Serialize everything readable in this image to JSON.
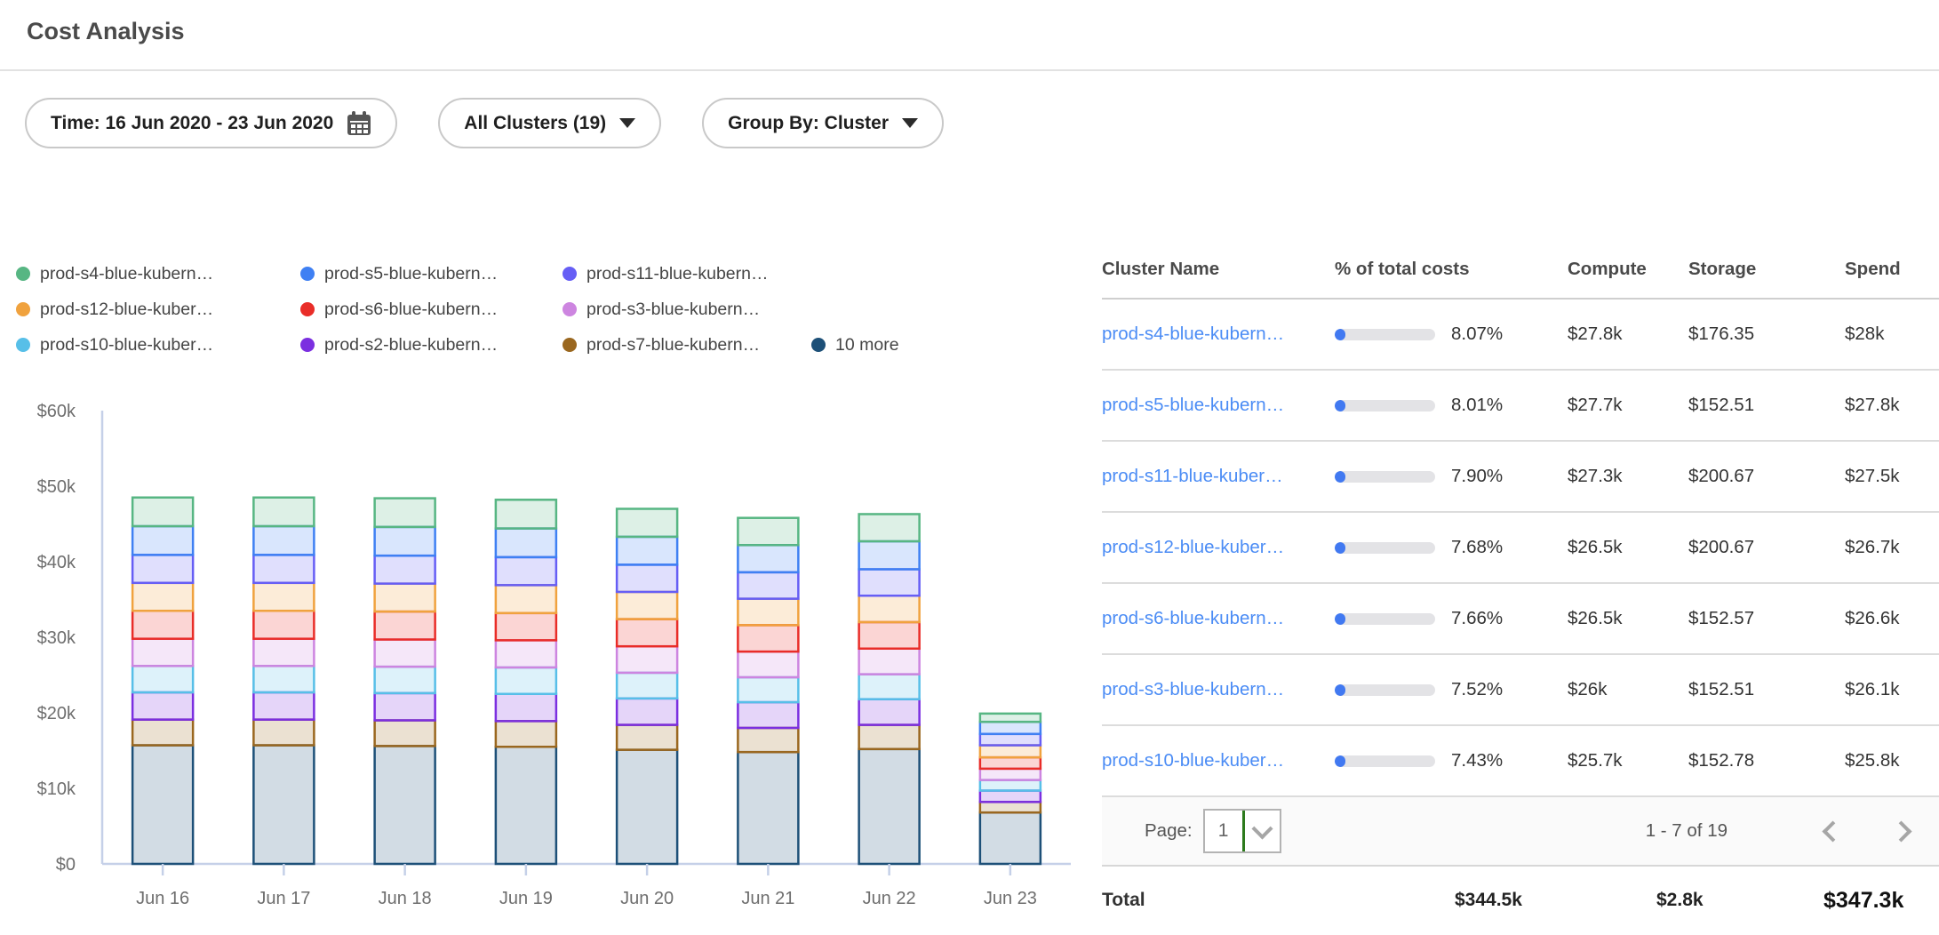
{
  "header": {
    "title": "Cost Analysis"
  },
  "filters": {
    "time_label": "Time: 16 Jun 2020 - 23 Jun 2020",
    "clusters_label": "All Clusters (19)",
    "group_by_label": "Group By: Cluster"
  },
  "icons": {
    "calendar": "calendar-icon",
    "caret_down": "caret-down-icon",
    "chevron_left": "chevron-left-icon",
    "chevron_right": "chevron-right-icon",
    "select_chevron": "chevron-down-icon"
  },
  "colors": {
    "link_blue": "#4b8cf5",
    "progress_track": "#e3e3e6",
    "progress_fill": "#4179f1",
    "axis_line": "#c5d0e8",
    "axis_text": "#6e6e6e",
    "select_divider_green": "#2d7a1d"
  },
  "chart_data": {
    "type": "bar",
    "stacked": true,
    "title": "",
    "xlabel": "",
    "ylabel": "",
    "ylim": [
      0,
      60000
    ],
    "ytick_labels": [
      "$0",
      "$10k",
      "$20k",
      "$30k",
      "$40k",
      "$50k",
      "$60k"
    ],
    "x": [
      "Jun 16",
      "Jun 17",
      "Jun 18",
      "Jun 19",
      "Jun 20",
      "Jun 21",
      "Jun 22",
      "Jun 23"
    ],
    "unit": "USD thousands per day",
    "legend_position": "top-left",
    "grid": false,
    "stack_order_bottom_to_top": [
      "10 more",
      "prod-s7-blue-kubern…",
      "prod-s2-blue-kubern…",
      "prod-s10-blue-kuber…",
      "prod-s3-blue-kubern…",
      "prod-s6-blue-kubern…",
      "prod-s12-blue-kuber…",
      "prod-s11-blue-kubern…",
      "prod-s5-blue-kubern…",
      "prod-s4-blue-kubern…"
    ],
    "series": [
      {
        "name": "prod-s4-blue-kubern…",
        "color": "#57b683",
        "values": [
          3.8,
          3.8,
          3.8,
          3.8,
          3.7,
          3.6,
          3.6,
          1.1
        ]
      },
      {
        "name": "prod-s5-blue-kubern…",
        "color": "#3f80f3",
        "values": [
          3.8,
          3.8,
          3.8,
          3.8,
          3.7,
          3.6,
          3.7,
          1.6
        ]
      },
      {
        "name": "prod-s11-blue-kubern…",
        "color": "#665ef5",
        "values": [
          3.7,
          3.7,
          3.7,
          3.7,
          3.6,
          3.5,
          3.5,
          1.5
        ]
      },
      {
        "name": "prod-s12-blue-kuber…",
        "color": "#f0a23e",
        "values": [
          3.7,
          3.7,
          3.7,
          3.7,
          3.6,
          3.5,
          3.5,
          1.6
        ]
      },
      {
        "name": "prod-s6-blue-kubern…",
        "color": "#e92d28",
        "values": [
          3.7,
          3.7,
          3.7,
          3.6,
          3.6,
          3.5,
          3.5,
          1.5
        ]
      },
      {
        "name": "prod-s3-blue-kubern…",
        "color": "#cd85e0",
        "values": [
          3.6,
          3.6,
          3.6,
          3.6,
          3.5,
          3.4,
          3.4,
          1.5
        ]
      },
      {
        "name": "prod-s10-blue-kuber…",
        "color": "#57bfe8",
        "values": [
          3.5,
          3.5,
          3.5,
          3.5,
          3.4,
          3.3,
          3.3,
          1.4
        ]
      },
      {
        "name": "prod-s2-blue-kubern…",
        "color": "#7b2fe0",
        "values": [
          3.6,
          3.6,
          3.6,
          3.6,
          3.5,
          3.4,
          3.4,
          1.5
        ]
      },
      {
        "name": "prod-s7-blue-kubern…",
        "color": "#9a671f",
        "values": [
          3.4,
          3.4,
          3.4,
          3.4,
          3.3,
          3.2,
          3.2,
          1.4
        ]
      },
      {
        "name": "10 more",
        "color": "#1d5078",
        "values": [
          15.7,
          15.7,
          15.6,
          15.5,
          15.1,
          14.8,
          15.2,
          6.8
        ]
      }
    ]
  },
  "table": {
    "columns": [
      "Cluster Name",
      "% of total costs",
      "Compute",
      "Storage",
      "Spend"
    ],
    "rows": [
      {
        "name": "prod-s4-blue-kubern…",
        "pct": "8.07%",
        "pct_value": 8.07,
        "compute": "$27.8k",
        "storage": "$176.35",
        "spend": "$28k"
      },
      {
        "name": "prod-s5-blue-kubern…",
        "pct": "8.01%",
        "pct_value": 8.01,
        "compute": "$27.7k",
        "storage": "$152.51",
        "spend": "$27.8k"
      },
      {
        "name": "prod-s11-blue-kuber…",
        "pct": "7.90%",
        "pct_value": 7.9,
        "compute": "$27.3k",
        "storage": "$200.67",
        "spend": "$27.5k"
      },
      {
        "name": "prod-s12-blue-kuber…",
        "pct": "7.68%",
        "pct_value": 7.68,
        "compute": "$26.5k",
        "storage": "$200.67",
        "spend": "$26.7k"
      },
      {
        "name": "prod-s6-blue-kubern…",
        "pct": "7.66%",
        "pct_value": 7.66,
        "compute": "$26.5k",
        "storage": "$152.57",
        "spend": "$26.6k"
      },
      {
        "name": "prod-s3-blue-kubern…",
        "pct": "7.52%",
        "pct_value": 7.52,
        "compute": "$26k",
        "storage": "$152.51",
        "spend": "$26.1k"
      },
      {
        "name": "prod-s10-blue-kuber…",
        "pct": "7.43%",
        "pct_value": 7.43,
        "compute": "$25.7k",
        "storage": "$152.78",
        "spend": "$25.8k"
      }
    ],
    "pagination": {
      "label": "Page:",
      "page": "1",
      "range": "1 - 7 of 19"
    },
    "total": {
      "label": "Total",
      "compute": "$344.5k",
      "storage": "$2.8k",
      "spend": "$347.3k"
    }
  }
}
